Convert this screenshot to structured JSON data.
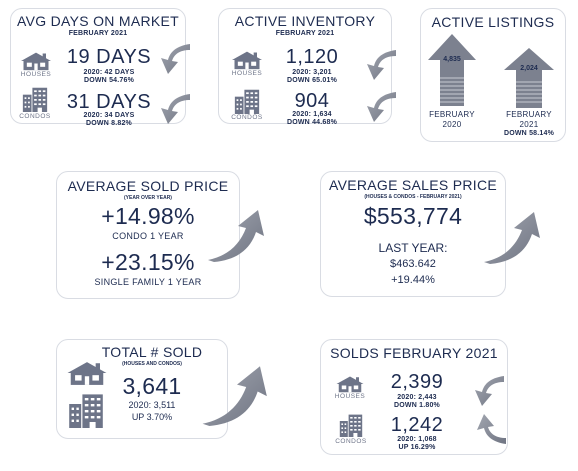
{
  "colors": {
    "navy": "#1d2b50",
    "icon_gray": "#6d7488",
    "arrow_gray": "#8a8f9b",
    "card_border": "#d9dce3"
  },
  "avg_days": {
    "title": "AVG DAYS ON MARKET",
    "subtitle": "FEBRUARY 2021",
    "houses": {
      "label": "HOUSES",
      "value": "19 DAYS",
      "compare": "2020: 42 DAYS",
      "change": "DOWN 54.76%",
      "icon": "house-icon"
    },
    "condos": {
      "label": "CONDOS",
      "value": "31 DAYS",
      "compare": "2020: 34 DAYS",
      "change": "DOWN 8.82%",
      "icon": "condo-building-icon"
    }
  },
  "active_inventory": {
    "title": "ACTIVE INVENTORY",
    "subtitle": "FEBRUARY 2021",
    "houses": {
      "label": "HOUSES",
      "value": "1,120",
      "compare": "2020: 3,201",
      "change": "DOWN 65.01%",
      "icon": "house-icon"
    },
    "condos": {
      "label": "CONDOS",
      "value": "904",
      "compare": "2020: 1,634",
      "change": "DOWN 44.68%",
      "icon": "condo-building-icon"
    }
  },
  "active_listings": {
    "title": "ACTIVE LISTINGS",
    "bar1": {
      "value": "4,835",
      "label_line1": "FEBRUARY",
      "label_line2": "2020"
    },
    "bar2": {
      "value": "2,024",
      "label_line1": "FEBRUARY",
      "label_line2": "2021",
      "label_line3": "DOWN 58.14%"
    }
  },
  "avg_sold_price": {
    "title": "AVERAGE SOLD PRICE",
    "subtitle": "(YEAR OVER YEAR)",
    "condo_value": "+14.98%",
    "condo_label": "CONDO 1 YEAR",
    "single_value": "+23.15%",
    "single_label": "SINGLE FAMILY 1 YEAR"
  },
  "avg_sales_price": {
    "title": "AVERAGE SALES PRICE",
    "subtitle": "(HOUSES & CONDOS - FEBRUARY 2021)",
    "value": "$553,774",
    "last_year_label": "LAST YEAR:",
    "last_year_value": "$463.642",
    "change": "+19.44%"
  },
  "total_sold": {
    "title": "TOTAL # SOLD",
    "subtitle": "(HOUSES AND CONDOS)",
    "value": "3,641",
    "compare": "2020: 3,511",
    "change": "UP 3.70%"
  },
  "solds_feb": {
    "title": "SOLDS FEBRUARY 2021",
    "houses": {
      "label": "HOUSES",
      "value": "2,399",
      "compare": "2020: 2,443",
      "change": "DOWN 1.80%",
      "icon": "house-icon"
    },
    "condos": {
      "label": "CONDOS",
      "value": "1,242",
      "compare": "2020: 1,068",
      "change": "UP 16.29%",
      "icon": "condo-building-icon"
    }
  }
}
